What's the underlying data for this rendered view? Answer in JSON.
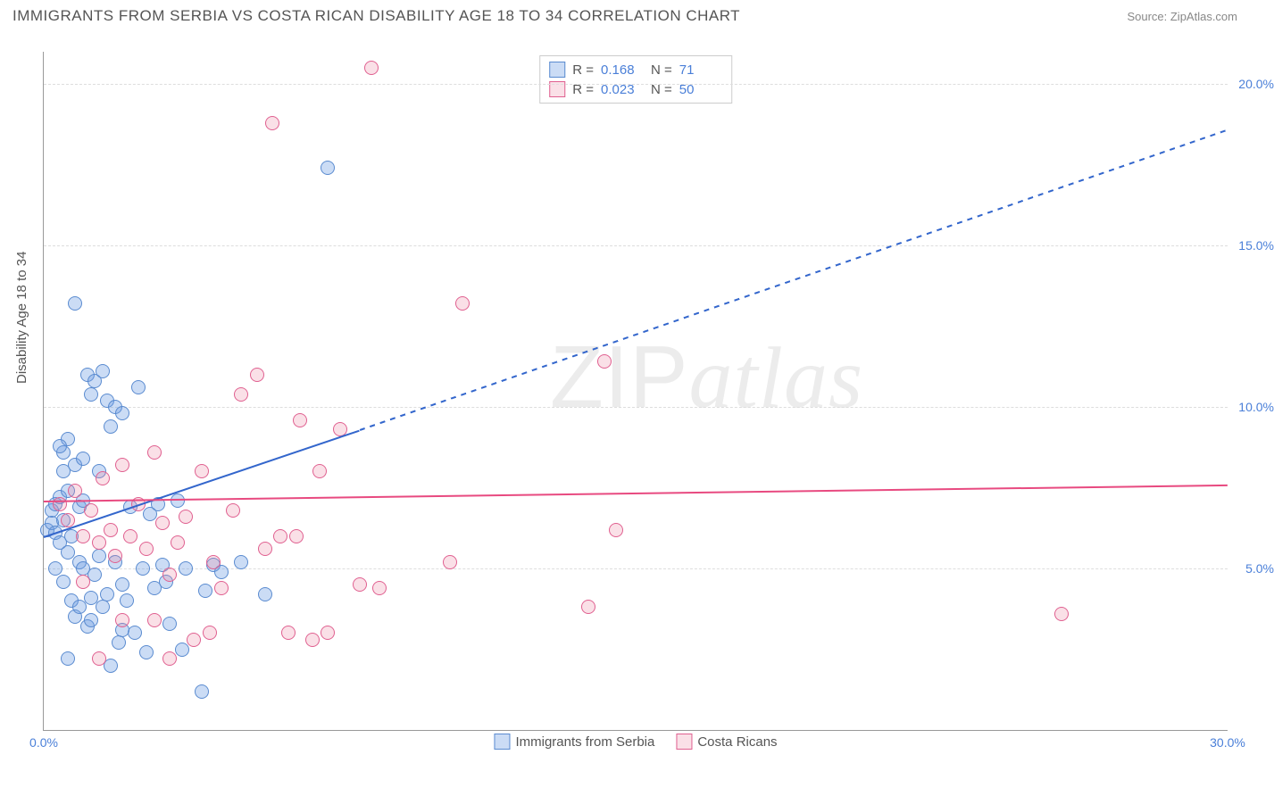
{
  "header": {
    "title": "IMMIGRANTS FROM SERBIA VS COSTA RICAN DISABILITY AGE 18 TO 34 CORRELATION CHART",
    "source_prefix": "Source: ",
    "source": "ZipAtlas.com"
  },
  "watermark": {
    "part1": "ZIP",
    "part2": "atlas"
  },
  "chart": {
    "type": "scatter",
    "ylabel": "Disability Age 18 to 34",
    "background_color": "#ffffff",
    "grid_color": "#dddddd",
    "axis_color": "#999999",
    "tick_label_color": "#4a7fd8",
    "xlim": [
      0,
      30
    ],
    "ylim": [
      0,
      21
    ],
    "xticks": [
      {
        "v": 0,
        "label": "0.0%"
      },
      {
        "v": 30,
        "label": "30.0%"
      }
    ],
    "yticks": [
      {
        "v": 5,
        "label": "5.0%"
      },
      {
        "v": 10,
        "label": "10.0%"
      },
      {
        "v": 15,
        "label": "15.0%"
      },
      {
        "v": 20,
        "label": "20.0%"
      }
    ],
    "series": [
      {
        "key": "serbia",
        "label": "Immigrants from Serbia",
        "R": "0.168",
        "N": "71",
        "fill": "rgba(105,155,225,0.35)",
        "stroke": "#5a8bd0",
        "marker_size": 16,
        "line_color": "#3366cc",
        "line_width": 2,
        "trend_solid": {
          "x1": 0,
          "y1": 6.0,
          "x2": 8,
          "y2": 9.3
        },
        "trend_dashed": {
          "x1": 8,
          "y1": 9.3,
          "x2": 30,
          "y2": 18.6
        },
        "points": [
          [
            0.1,
            6.2
          ],
          [
            0.2,
            6.4
          ],
          [
            0.2,
            6.8
          ],
          [
            0.3,
            6.1
          ],
          [
            0.3,
            7.0
          ],
          [
            0.4,
            7.2
          ],
          [
            0.4,
            5.8
          ],
          [
            0.5,
            6.5
          ],
          [
            0.5,
            8.6
          ],
          [
            0.5,
            8.0
          ],
          [
            0.6,
            7.4
          ],
          [
            0.6,
            5.5
          ],
          [
            0.7,
            6.0
          ],
          [
            0.7,
            4.0
          ],
          [
            0.8,
            13.2
          ],
          [
            0.8,
            3.5
          ],
          [
            0.9,
            5.2
          ],
          [
            0.9,
            6.9
          ],
          [
            1.0,
            5.0
          ],
          [
            1.0,
            7.1
          ],
          [
            1.1,
            11.0
          ],
          [
            1.1,
            3.2
          ],
          [
            1.2,
            10.4
          ],
          [
            1.2,
            4.1
          ],
          [
            1.3,
            4.8
          ],
          [
            1.3,
            10.8
          ],
          [
            1.4,
            5.4
          ],
          [
            1.5,
            11.1
          ],
          [
            1.5,
            3.8
          ],
          [
            1.6,
            10.2
          ],
          [
            1.6,
            4.2
          ],
          [
            1.7,
            9.4
          ],
          [
            1.8,
            5.2
          ],
          [
            1.8,
            10.0
          ],
          [
            1.9,
            2.7
          ],
          [
            2.0,
            4.5
          ],
          [
            2.0,
            9.8
          ],
          [
            2.1,
            4.0
          ],
          [
            2.2,
            6.9
          ],
          [
            2.3,
            3.0
          ],
          [
            2.4,
            10.6
          ],
          [
            2.5,
            5.0
          ],
          [
            2.6,
            2.4
          ],
          [
            2.7,
            6.7
          ],
          [
            2.8,
            4.4
          ],
          [
            2.9,
            7.0
          ],
          [
            3.0,
            5.1
          ],
          [
            3.1,
            4.6
          ],
          [
            3.2,
            3.3
          ],
          [
            3.4,
            7.1
          ],
          [
            3.5,
            2.5
          ],
          [
            3.6,
            5.0
          ],
          [
            4.0,
            1.2
          ],
          [
            4.1,
            4.3
          ],
          [
            4.3,
            5.1
          ],
          [
            4.5,
            4.9
          ],
          [
            5.0,
            5.2
          ],
          [
            5.6,
            4.2
          ],
          [
            7.2,
            17.4
          ],
          [
            0.6,
            9.0
          ],
          [
            0.8,
            8.2
          ],
          [
            0.4,
            8.8
          ],
          [
            1.0,
            8.4
          ],
          [
            1.4,
            8.0
          ],
          [
            1.2,
            3.4
          ],
          [
            0.9,
            3.8
          ],
          [
            2.0,
            3.1
          ],
          [
            0.5,
            4.6
          ],
          [
            0.3,
            5.0
          ],
          [
            0.6,
            2.2
          ],
          [
            1.7,
            2.0
          ]
        ]
      },
      {
        "key": "costarica",
        "label": "Costa Ricans",
        "R": "0.023",
        "N": "50",
        "fill": "rgba(235,130,160,0.25)",
        "stroke": "#e06090",
        "marker_size": 16,
        "line_color": "#e84a80",
        "line_width": 2,
        "trend_solid": {
          "x1": 0,
          "y1": 7.1,
          "x2": 30,
          "y2": 7.6
        },
        "points": [
          [
            0.4,
            7.0
          ],
          [
            0.6,
            6.5
          ],
          [
            0.8,
            7.4
          ],
          [
            1.0,
            6.0
          ],
          [
            1.2,
            6.8
          ],
          [
            1.4,
            5.8
          ],
          [
            1.5,
            7.8
          ],
          [
            1.7,
            6.2
          ],
          [
            1.8,
            5.4
          ],
          [
            2.0,
            8.2
          ],
          [
            2.2,
            6.0
          ],
          [
            2.4,
            7.0
          ],
          [
            2.6,
            5.6
          ],
          [
            2.8,
            8.6
          ],
          [
            3.0,
            6.4
          ],
          [
            3.2,
            4.8
          ],
          [
            3.4,
            5.8
          ],
          [
            3.6,
            6.6
          ],
          [
            3.8,
            2.8
          ],
          [
            4.0,
            8.0
          ],
          [
            4.3,
            5.2
          ],
          [
            4.5,
            4.4
          ],
          [
            4.8,
            6.8
          ],
          [
            5.0,
            10.4
          ],
          [
            5.4,
            11.0
          ],
          [
            5.8,
            18.8
          ],
          [
            6.0,
            6.0
          ],
          [
            6.2,
            3.0
          ],
          [
            6.5,
            9.6
          ],
          [
            6.8,
            2.8
          ],
          [
            7.0,
            8.0
          ],
          [
            7.2,
            3.0
          ],
          [
            7.5,
            9.3
          ],
          [
            8.0,
            4.5
          ],
          [
            8.3,
            20.5
          ],
          [
            8.5,
            4.4
          ],
          [
            10.3,
            5.2
          ],
          [
            10.6,
            13.2
          ],
          [
            13.8,
            3.8
          ],
          [
            14.2,
            11.4
          ],
          [
            14.5,
            6.2
          ],
          [
            3.2,
            2.2
          ],
          [
            1.4,
            2.2
          ],
          [
            2.0,
            3.4
          ],
          [
            2.8,
            3.4
          ],
          [
            4.2,
            3.0
          ],
          [
            5.6,
            5.6
          ],
          [
            6.4,
            6.0
          ],
          [
            25.8,
            3.6
          ],
          [
            1.0,
            4.6
          ]
        ]
      }
    ],
    "legend_top": {
      "r_label": "R  =",
      "n_label": "N  ="
    }
  }
}
